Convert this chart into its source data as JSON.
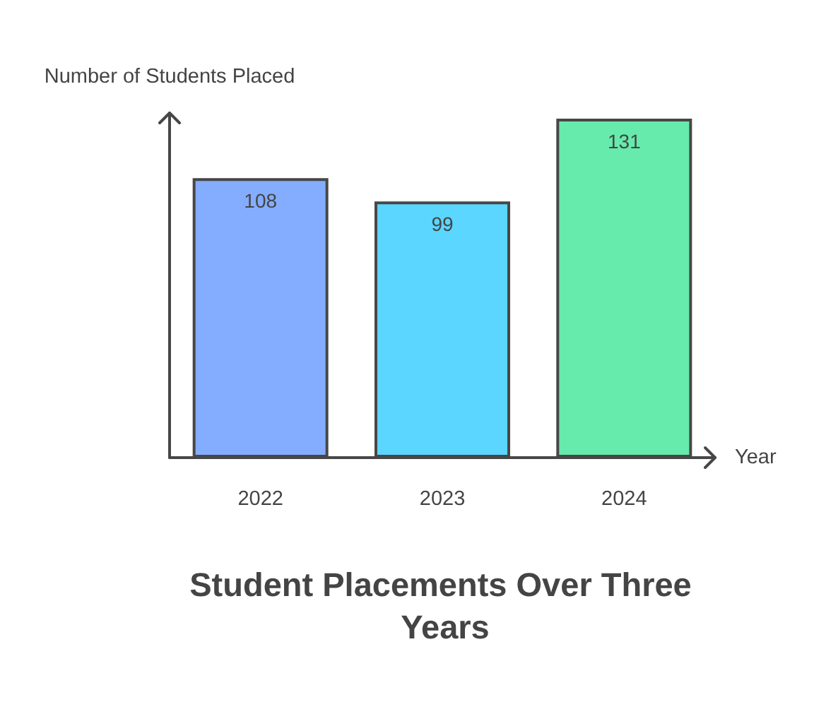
{
  "chart_data": {
    "type": "bar",
    "title": "Student Placements Over Three Years",
    "xlabel": "Year",
    "ylabel": "Number of Students Placed",
    "categories": [
      "2022",
      "2023",
      "2024"
    ],
    "values": [
      108,
      99,
      131
    ],
    "colors": [
      "#84adff",
      "#5ad6ff",
      "#66ebac"
    ],
    "data_labels": true
  }
}
